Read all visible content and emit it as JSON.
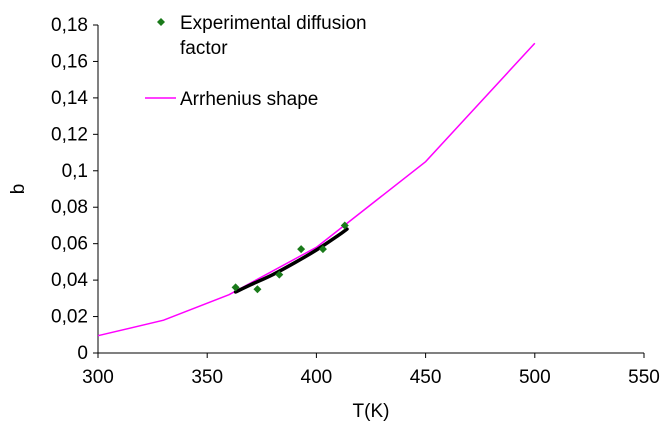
{
  "chart_data": {
    "type": "scatter",
    "xlabel": "T(K)",
    "ylabel": "b",
    "xlim": [
      300,
      550
    ],
    "ylim": [
      0,
      0.18
    ],
    "x_ticks": [
      300,
      350,
      400,
      450,
      500,
      550
    ],
    "y_ticks": [
      0,
      0.02,
      0.04,
      0.06,
      0.08,
      0.1,
      0.12,
      0.14,
      0.16,
      0.18
    ],
    "x_tick_labels": [
      "300",
      "350",
      "400",
      "450",
      "500",
      "550"
    ],
    "y_tick_labels": [
      "0",
      "0,02",
      "0,04",
      "0,06",
      "0,08",
      "0,1",
      "0,12",
      "0,14",
      "0,16",
      "0,18"
    ],
    "grid": false,
    "legend_position": "top-center",
    "legend": {
      "experimental_line1": "Experimental diffusion",
      "experimental_line2": "factor",
      "arrhenius": "Arrhenius shape"
    },
    "series": [
      {
        "name": "Experimental diffusion factor",
        "kind": "scatter",
        "marker": "diamond",
        "color": "#1a7a1a",
        "x": [
          363,
          373,
          383,
          393,
          403,
          413
        ],
        "y": [
          0.036,
          0.035,
          0.043,
          0.057,
          0.057,
          0.07
        ]
      },
      {
        "name": "Arrhenius shape",
        "kind": "line",
        "color": "#ff00ff",
        "x": [
          300,
          330,
          360,
          400,
          450,
          500
        ],
        "y": [
          0.0095,
          0.018,
          0.032,
          0.058,
          0.105,
          0.17
        ]
      },
      {
        "kind": "fit",
        "color": "#000000",
        "x": [
          363,
          370,
          380,
          390,
          400,
          410,
          414
        ],
        "y": [
          0.0335,
          0.0375,
          0.043,
          0.0495,
          0.0565,
          0.0645,
          0.068
        ]
      }
    ]
  }
}
